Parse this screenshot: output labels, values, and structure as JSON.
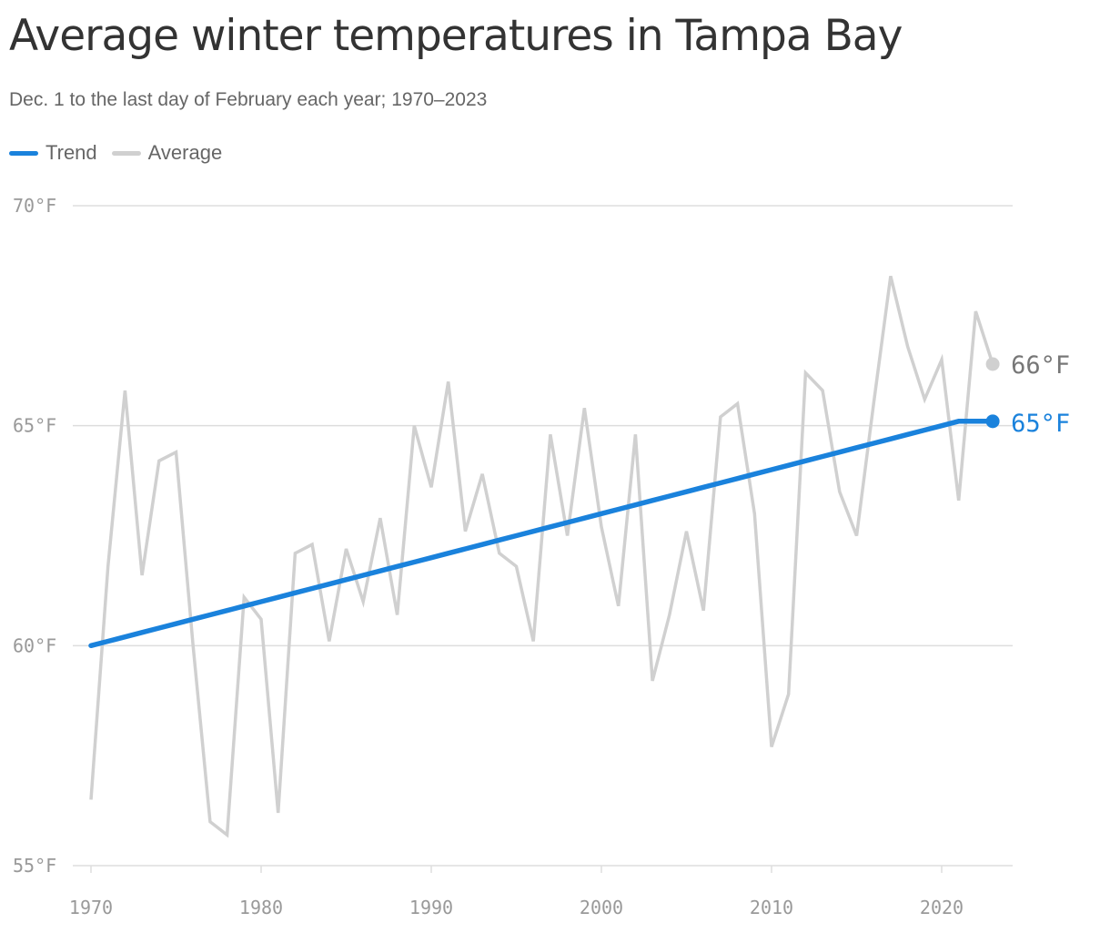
{
  "header": {
    "title": "Average winter temperatures in Tampa Bay",
    "subtitle": "Dec. 1 to the last day of February each year; 1970–2023"
  },
  "legend": {
    "trend_label": "Trend",
    "average_label": "Average"
  },
  "colors": {
    "trend": "#1a82dc",
    "average": "#d0d0d0",
    "grid": "#dddddd",
    "axis_text": "#999999",
    "end_label_average": "#777777"
  },
  "chart_data": {
    "type": "line",
    "x": [
      1970,
      1971,
      1972,
      1973,
      1974,
      1975,
      1976,
      1977,
      1978,
      1979,
      1980,
      1981,
      1982,
      1983,
      1984,
      1985,
      1986,
      1987,
      1988,
      1989,
      1990,
      1991,
      1992,
      1993,
      1994,
      1995,
      1996,
      1997,
      1998,
      1999,
      2000,
      2001,
      2002,
      2003,
      2004,
      2005,
      2006,
      2007,
      2008,
      2009,
      2010,
      2011,
      2012,
      2013,
      2014,
      2015,
      2016,
      2017,
      2018,
      2019,
      2020,
      2021,
      2022,
      2023
    ],
    "series": [
      {
        "name": "Average",
        "values": [
          56.5,
          61.8,
          65.8,
          61.6,
          64.2,
          64.4,
          60.0,
          56.0,
          55.7,
          61.1,
          60.6,
          56.2,
          62.1,
          62.3,
          60.1,
          62.2,
          61.0,
          62.9,
          60.7,
          65.0,
          63.6,
          66.0,
          62.6,
          63.9,
          62.1,
          61.8,
          60.1,
          64.8,
          62.5,
          65.4,
          62.7,
          60.9,
          64.8,
          59.2,
          60.7,
          62.6,
          60.8,
          65.2,
          65.5,
          63.0,
          57.7,
          58.9,
          66.2,
          65.8,
          63.5,
          62.5,
          65.5,
          68.4,
          66.8,
          65.6,
          66.5,
          63.3,
          67.6,
          66.4
        ]
      },
      {
        "name": "Trend",
        "values": [
          60.0,
          60.1,
          60.2,
          60.3,
          60.4,
          60.5,
          60.6,
          60.7,
          60.8,
          60.9,
          61.0,
          61.1,
          61.2,
          61.3,
          61.4,
          61.5,
          61.6,
          61.7,
          61.8,
          61.9,
          62.0,
          62.1,
          62.2,
          62.3,
          62.4,
          62.5,
          62.6,
          62.7,
          62.8,
          62.9,
          63.0,
          63.1,
          63.2,
          63.3,
          63.4,
          63.5,
          63.6,
          63.7,
          63.8,
          63.9,
          64.0,
          64.1,
          64.2,
          64.3,
          64.4,
          64.5,
          64.6,
          64.7,
          64.8,
          64.9,
          65.0,
          65.1,
          65.1,
          65.1
        ]
      }
    ],
    "xlim": [
      1970,
      2024
    ],
    "ylim": [
      55,
      70
    ],
    "x_ticks": [
      1970,
      1980,
      1990,
      2000,
      2010,
      2020
    ],
    "y_ticks": [
      70,
      65,
      60,
      55
    ],
    "y_tick_labels": [
      "70°F",
      "65°F",
      "60°F",
      "55°F"
    ],
    "end_labels": {
      "average": "66°F",
      "trend": "65°F"
    },
    "grid": true,
    "legend_position": "top-left"
  }
}
